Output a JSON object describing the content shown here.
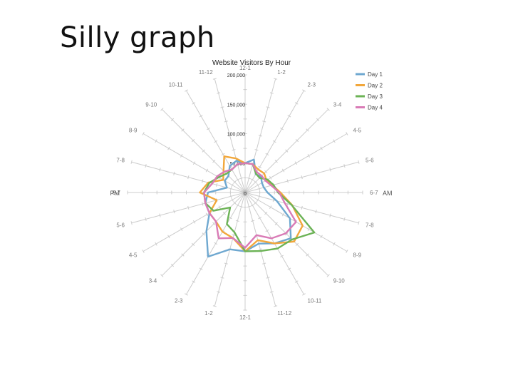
{
  "slide": {
    "title": "Silly graph"
  },
  "chart_data": {
    "type": "radar",
    "title": "Website Visitors By Hour",
    "rmax": 200000,
    "ring_labels": [
      "50,000",
      "100,000",
      "150,000",
      "200,000"
    ],
    "ring_values": [
      50000,
      100000,
      150000,
      200000
    ],
    "center_label": "0",
    "side_labels": {
      "right": "AM",
      "left": "PM"
    },
    "legend_position": "top-right",
    "categories": [
      "12-1",
      "1-2",
      "2-3",
      "3-4",
      "4-5",
      "5-6",
      "6-7",
      "7-8",
      "8-9",
      "9-10",
      "10-11",
      "11-12",
      "12-1",
      "1-2",
      "2-3",
      "3-4",
      "4-5",
      "5-6",
      "6-7",
      "7-8",
      "8-9",
      "9-10",
      "10-11",
      "11-12"
    ],
    "series": [
      {
        "name": "Day 1",
        "color": "#6fa8d0",
        "values": [
          50000,
          58000,
          36000,
          38000,
          33000,
          33000,
          38000,
          56000,
          88000,
          110000,
          100000,
          90000,
          100000,
          100000,
          126000,
          93000,
          70000,
          70000,
          63000,
          32000,
          40000,
          40000,
          52000,
          56000
        ]
      },
      {
        "name": "Day 2",
        "color": "#f2a73b",
        "values": [
          50000,
          50000,
          45000,
          46000,
          42000,
          48000,
          60000,
          83000,
          113000,
          118000,
          100000,
          84000,
          100000,
          80000,
          77000,
          70000,
          70000,
          50000,
          77000,
          65000,
          43000,
          52000,
          71000,
          60000
        ]
      },
      {
        "name": "Day 3",
        "color": "#6cb356",
        "values": [
          50000,
          50000,
          37000,
          35000,
          44000,
          50000,
          56000,
          82000,
          136000,
          113000,
          110000,
          103000,
          100000,
          70000,
          62000,
          36000,
          62000,
          70000,
          70000,
          63000,
          52000,
          45000,
          45000,
          50000
        ]
      },
      {
        "name": "Day 4",
        "color": "#d97bb6",
        "values": [
          50000,
          50000,
          40000,
          40000,
          40000,
          46000,
          58000,
          70000,
          100000,
          98000,
          90000,
          75000,
          94000,
          80000,
          90000,
          70000,
          70000,
          70000,
          70000,
          58000,
          55000,
          50000,
          45000,
          50000
        ]
      }
    ]
  }
}
